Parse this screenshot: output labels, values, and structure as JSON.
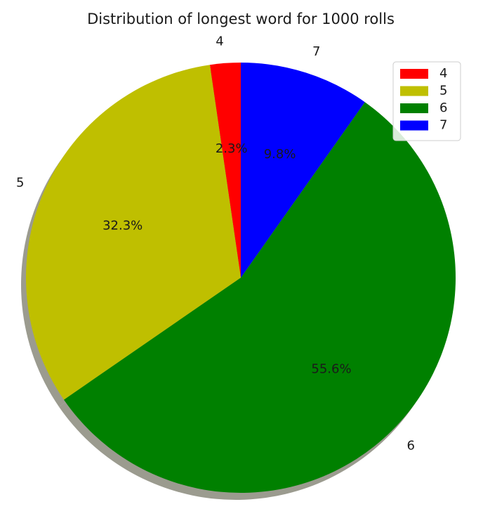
{
  "chart_data": {
    "type": "pie",
    "title": "Distribution of longest word for 1000 rolls",
    "categories": [
      "4",
      "5",
      "6",
      "7"
    ],
    "values": [
      2.3,
      32.3,
      55.6,
      9.8
    ],
    "value_labels": [
      "2.3%",
      "32.3%",
      "55.6%",
      "9.8%"
    ],
    "colors": [
      "#ff0000",
      "#bfbf00",
      "#008000",
      "#0000ff"
    ],
    "start_angle_deg": 90,
    "direction": "counterclockwise",
    "shadow": true,
    "legend": {
      "placement": "top-right",
      "entries": [
        "4",
        "5",
        "6",
        "7"
      ]
    }
  }
}
